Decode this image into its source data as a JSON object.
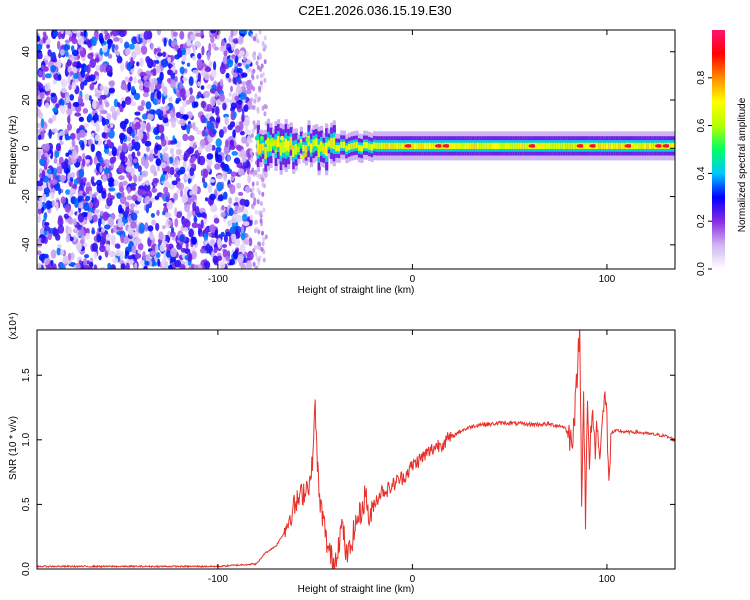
{
  "title": "C2E1.2026.036.15.19.E30",
  "colors": {
    "snr_line": "#e8302a",
    "axis": "#000000",
    "background": "#ffffff"
  },
  "chart_data": [
    {
      "type": "heatmap",
      "xlabel": "Height of straight line (km)",
      "ylabel": "Frequency (Hz)",
      "xlim": [
        -193,
        135
      ],
      "ylim": [
        -50,
        49
      ],
      "xticks": [
        -100,
        0,
        100
      ],
      "xtick_labels": [
        "-100",
        "0",
        "100"
      ],
      "yticks": [
        -40,
        -20,
        0,
        20,
        40
      ],
      "ytick_labels": [
        "-40",
        "-20",
        "0",
        "20",
        "40"
      ],
      "noise_region_x": [
        -193,
        -77
      ],
      "signal_band_center_hz": 1,
      "signal_band_halfwidth_hz": 3,
      "colorbar": {
        "label": "Normalized spectral amplitude",
        "range": [
          0,
          1
        ],
        "ticks": [
          0.0,
          0.2,
          0.4,
          0.6,
          0.8
        ],
        "tick_labels": [
          "0.0",
          "0.2",
          "0.4",
          "0.6",
          "0.8"
        ],
        "colors": [
          "#ffffff",
          "#d0b4f2",
          "#8a2be2",
          "#0000ff",
          "#00c8ff",
          "#00ff64",
          "#b4ff00",
          "#ffff00",
          "#ff8c00",
          "#ff0000",
          "#ff1478"
        ]
      }
    },
    {
      "type": "line",
      "xlabel": "Height of straight line (km)",
      "ylabel": "SNR (10 * v/v)",
      "y_multiplier": "(x10⁴)",
      "xlim": [
        -193,
        135
      ],
      "ylim": [
        0,
        1.85
      ],
      "xticks": [
        -100,
        0,
        100
      ],
      "xtick_labels": [
        "-100",
        "0",
        "100"
      ],
      "yticks": [
        0.0,
        0.5,
        1.0,
        1.5
      ],
      "ytick_labels": [
        "0.0",
        "0.5",
        "1.0",
        "1.5"
      ],
      "series": [
        {
          "name": "SNR",
          "x": [
            -193,
            -150,
            -100,
            -80,
            -76,
            -70,
            -66,
            -62,
            -58,
            -55,
            -52,
            -50,
            -48,
            -46,
            -44,
            -42,
            -40,
            -38,
            -36,
            -34,
            -32,
            -30,
            -28,
            -26,
            -24,
            -22,
            -20,
            -16,
            -12,
            -8,
            -4,
            0,
            4,
            8,
            12,
            16,
            20,
            25,
            30,
            35,
            40,
            45,
            50,
            60,
            70,
            75,
            78,
            80,
            82,
            84,
            85,
            86,
            87,
            88,
            89,
            90,
            91,
            92,
            93,
            94,
            95,
            96,
            97,
            98,
            99,
            100,
            101,
            102,
            105,
            110,
            115,
            120,
            125,
            130,
            135
          ],
          "y": [
            0.02,
            0.02,
            0.02,
            0.04,
            0.12,
            0.18,
            0.28,
            0.45,
            0.55,
            0.62,
            0.7,
            1.24,
            0.55,
            0.4,
            0.2,
            0.1,
            0.05,
            0.2,
            0.35,
            0.1,
            0.15,
            0.3,
            0.4,
            0.45,
            0.6,
            0.35,
            0.5,
            0.6,
            0.62,
            0.68,
            0.72,
            0.8,
            0.85,
            0.9,
            0.95,
            0.98,
            1.02,
            1.07,
            1.1,
            1.12,
            1.12,
            1.13,
            1.13,
            1.12,
            1.12,
            1.11,
            1.1,
            1.05,
            1.0,
            1.3,
            1.62,
            1.85,
            0.6,
            1.4,
            0.38,
            1.25,
            0.8,
            1.1,
            1.2,
            0.9,
            1.15,
            0.85,
            1.1,
            1.2,
            1.3,
            1.18,
            0.6,
            1.05,
            1.07,
            1.06,
            1.06,
            1.05,
            1.04,
            1.03,
            1.0
          ]
        }
      ]
    }
  ]
}
